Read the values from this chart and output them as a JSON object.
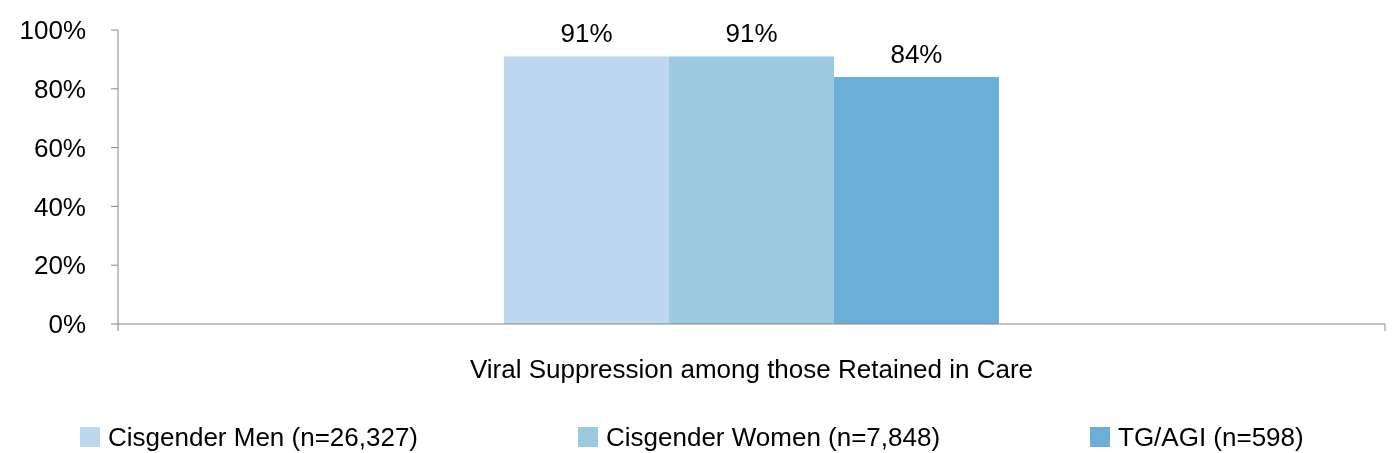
{
  "chart_data": {
    "type": "bar",
    "categories": [
      "Viral Suppression among those Retained in Care"
    ],
    "series": [
      {
        "name": "Cisgender Men (n=26,327)",
        "color": "#bdd7ee",
        "values": [
          91
        ],
        "value_labels": [
          "91%"
        ]
      },
      {
        "name": "Cisgender Women (n=7,848)",
        "color": "#9dc9e0",
        "values": [
          91
        ],
        "value_labels": [
          "91%"
        ]
      },
      {
        "name": "TG/AGI (n=598)",
        "color": "#6baed6",
        "values": [
          84
        ],
        "value_labels": [
          "84%"
        ]
      }
    ],
    "ylim": [
      0,
      100
    ],
    "yticks": [
      {
        "value": 0,
        "label": "0%"
      },
      {
        "value": 20,
        "label": "20%"
      },
      {
        "value": 40,
        "label": "40%"
      },
      {
        "value": 60,
        "label": "60%"
      },
      {
        "value": 80,
        "label": "80%"
      },
      {
        "value": 100,
        "label": "100%"
      }
    ],
    "grid": false,
    "legend": "bottom"
  }
}
